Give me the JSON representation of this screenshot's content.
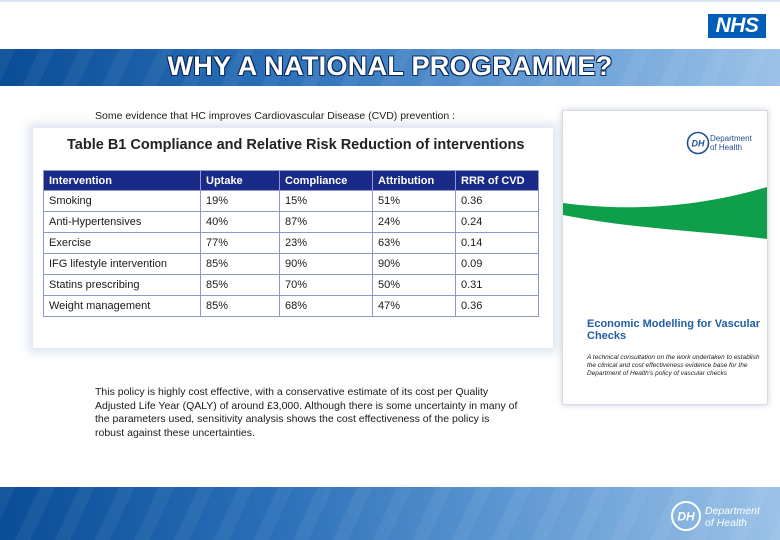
{
  "header": {
    "nhs_logo": "NHS",
    "title": "WHY A NATIONAL PROGRAMME?"
  },
  "evidence_intro": "Some evidence that HC improves Cardiovascular Disease (CVD) prevention :",
  "table": {
    "title": "Table B1 Compliance and Relative Risk Reduction of interventions",
    "columns": [
      "Intervention",
      "Uptake",
      "Compliance",
      "Attribution",
      "RRR of CVD"
    ],
    "rows": [
      [
        "Smoking",
        "19%",
        "15%",
        "51%",
        "0.36"
      ],
      [
        "Anti-Hypertensives",
        "40%",
        "87%",
        "24%",
        "0.24"
      ],
      [
        "Exercise",
        "77%",
        "23%",
        "63%",
        "0.14"
      ],
      [
        "IFG lifestyle intervention",
        "85%",
        "90%",
        "90%",
        "0.09"
      ],
      [
        "Statins prescribing",
        "85%",
        "70%",
        "50%",
        "0.31"
      ],
      [
        "Weight management",
        "85%",
        "68%",
        "47%",
        "0.36"
      ]
    ]
  },
  "report_cover": {
    "logo_mark": "DH",
    "logo_text_1": "Department",
    "logo_text_2": "of Health",
    "title": "Economic Modelling for Vascular Checks",
    "description": "A technical consultation on the work undertaken to establish the clinical and cost effectiveness evidence base for the Department of Health's policy of vascular checks"
  },
  "policy_text": "This policy is highly cost effective, with a conservative estimate of its cost per Quality Adjusted Life Year (QALY) of around £3,000. Although there is some uncertainty in many of the parameters used, sensitivity analysis shows the cost effectiveness of the policy is robust against these uncertainties.",
  "footer": {
    "logo_mark": "DH",
    "logo_text_1": "Department",
    "logo_text_2": "of Health"
  },
  "colors": {
    "nhs_blue": "#005EB8",
    "table_header": "#1a2a88",
    "cover_green": "#0f9f4b",
    "band_blue": "#2a6fb8"
  }
}
